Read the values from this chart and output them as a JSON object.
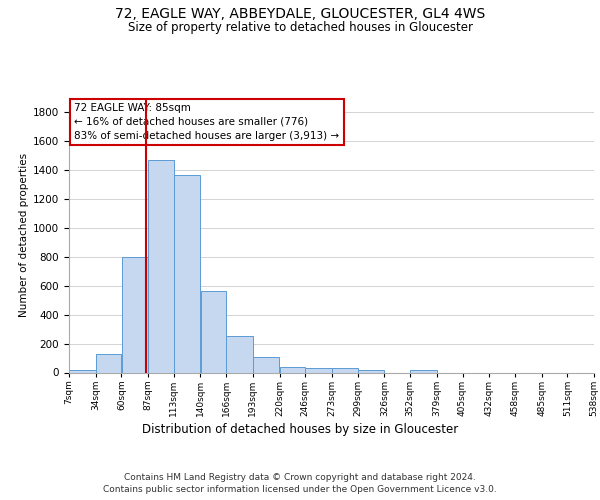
{
  "title": "72, EAGLE WAY, ABBEYDALE, GLOUCESTER, GL4 4WS",
  "subtitle": "Size of property relative to detached houses in Gloucester",
  "xlabel": "Distribution of detached houses by size in Gloucester",
  "ylabel": "Number of detached properties",
  "footer_line1": "Contains HM Land Registry data © Crown copyright and database right 2024.",
  "footer_line2": "Contains public sector information licensed under the Open Government Licence v3.0.",
  "annotation_title": "72 EAGLE WAY: 85sqm",
  "annotation_line1": "← 16% of detached houses are smaller (776)",
  "annotation_line2": "83% of semi-detached houses are larger (3,913) →",
  "bar_color": "#c5d8f0",
  "bar_edge_color": "#5b9bd5",
  "vline_color": "#cc0000",
  "vline_x": 85,
  "bin_edges": [
    7,
    34,
    60,
    87,
    113,
    140,
    166,
    193,
    220,
    246,
    273,
    299,
    326,
    352,
    379,
    405,
    432,
    458,
    485,
    511,
    538
  ],
  "bin_labels": [
    "7sqm",
    "34sqm",
    "60sqm",
    "87sqm",
    "113sqm",
    "140sqm",
    "166sqm",
    "193sqm",
    "220sqm",
    "246sqm",
    "273sqm",
    "299sqm",
    "326sqm",
    "352sqm",
    "379sqm",
    "405sqm",
    "432sqm",
    "458sqm",
    "485sqm",
    "511sqm",
    "538sqm"
  ],
  "bar_heights": [
    15,
    130,
    795,
    1470,
    1365,
    560,
    250,
    110,
    35,
    30,
    30,
    20,
    0,
    20,
    0,
    0,
    0,
    0,
    0,
    0
  ],
  "ylim": [
    0,
    1900
  ],
  "yticks": [
    0,
    200,
    400,
    600,
    800,
    1000,
    1200,
    1400,
    1600,
    1800
  ],
  "background_color": "#ffffff",
  "grid_color": "#cccccc"
}
